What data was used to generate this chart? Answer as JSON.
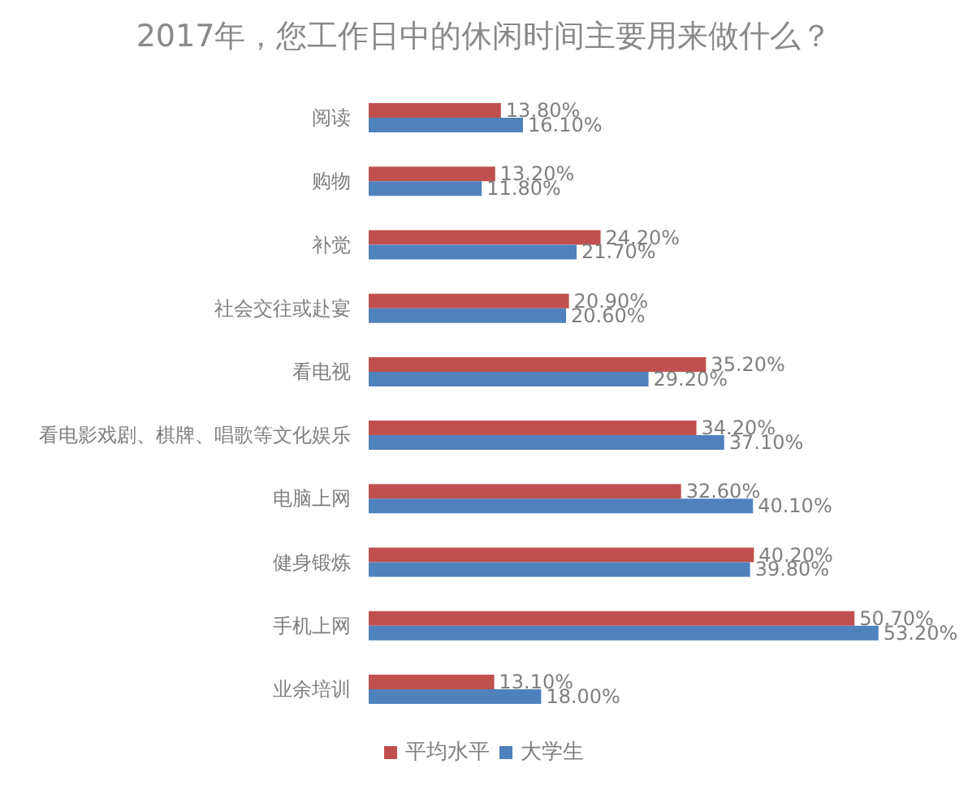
{
  "chart_data": {
    "type": "bar",
    "orientation": "horizontal",
    "title": "2017年，您工作日中的休闲时间主要用来做什么？",
    "categories": [
      "阅读",
      "购物",
      "补觉",
      "社会交往或赴宴",
      "看电视",
      "看电影戏剧、棋牌、唱歌等文化娱乐",
      "电脑上网",
      "健身锻炼",
      "手机上网",
      "业余培训"
    ],
    "series": [
      {
        "name": "平均水平",
        "color": "#c0504d",
        "values": [
          13.8,
          13.2,
          24.2,
          20.9,
          35.2,
          34.2,
          32.6,
          40.2,
          50.7,
          13.1
        ],
        "value_labels": [
          "13.80%",
          "13.20%",
          "24.20%",
          "20.90%",
          "35.20%",
          "34.20%",
          "32.60%",
          "40.20%",
          "50.70%",
          "13.10%"
        ]
      },
      {
        "name": "大学生",
        "color": "#4f81bd",
        "values": [
          16.1,
          11.8,
          21.7,
          20.6,
          29.2,
          37.1,
          40.1,
          39.8,
          53.2,
          18.0
        ],
        "value_labels": [
          "16.10%",
          "11.80%",
          "21.70%",
          "20.60%",
          "29.20%",
          "37.10%",
          "40.10%",
          "39.80%",
          "53.20%",
          "18.00%"
        ]
      }
    ],
    "legend": "bottom"
  }
}
